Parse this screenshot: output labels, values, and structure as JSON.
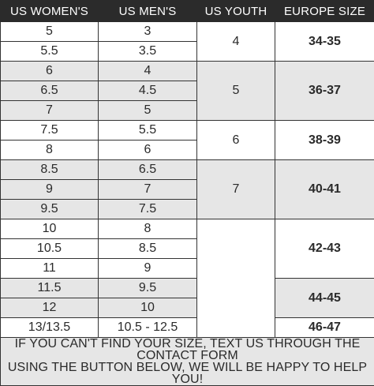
{
  "headers": [
    "US WOMEN'S",
    "US MEN'S",
    "US YOUTH",
    "EUROPE SIZE"
  ],
  "rows": [
    {
      "women": "5",
      "men": "3"
    },
    {
      "women": "5.5",
      "men": "3.5"
    },
    {
      "women": "6",
      "men": "4"
    },
    {
      "women": "6.5",
      "men": "4.5"
    },
    {
      "women": "7",
      "men": "5"
    },
    {
      "women": "7.5",
      "men": "5.5"
    },
    {
      "women": "8",
      "men": "6"
    },
    {
      "women": "8.5",
      "men": "6.5"
    },
    {
      "women": "9",
      "men": "7"
    },
    {
      "women": "9.5",
      "men": "7.5"
    },
    {
      "women": "10",
      "men": "8"
    },
    {
      "women": "10.5",
      "men": "8.5"
    },
    {
      "women": "11",
      "men": "9"
    },
    {
      "women": "11.5",
      "men": "9.5"
    },
    {
      "women": "12",
      "men": "10"
    },
    {
      "women": "13/13.5",
      "men": "10.5 - 12.5"
    }
  ],
  "youth": [
    "4",
    "5",
    "6",
    "7",
    ""
  ],
  "europe": [
    "34-35",
    "36-37",
    "38-39",
    "40-41",
    "42-43",
    "44-45",
    "46-47"
  ],
  "footer": {
    "line1": "IF YOU CAN'T FIND YOUR SIZE, TEXT US THROUGH THE CONTACT FORM",
    "line2": "USING THE BUTTON BELOW, WE WILL BE HAPPY TO HELP YOU!"
  },
  "colors": {
    "header_bg": "#2b2b2b",
    "shaded_row": "#e6e6e6",
    "border": "#333333"
  }
}
